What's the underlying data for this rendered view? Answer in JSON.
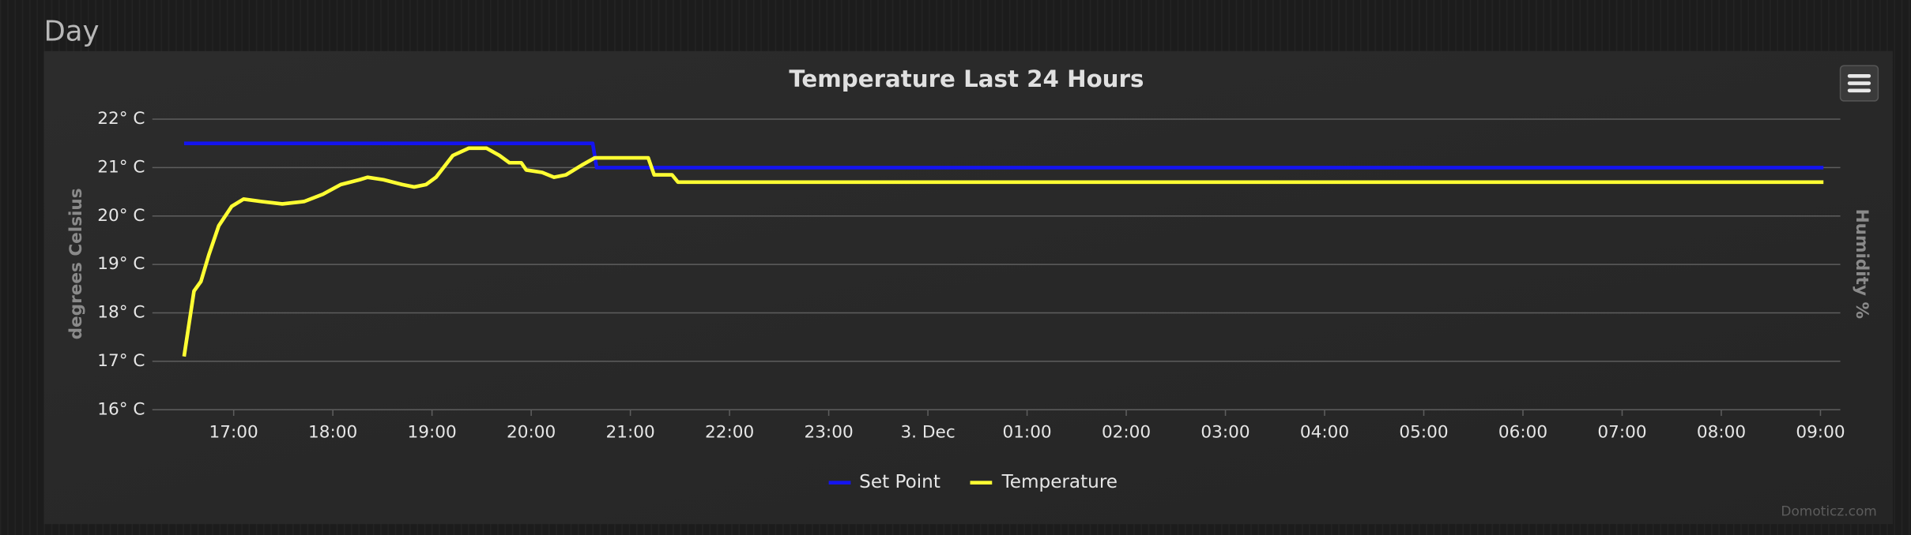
{
  "header": {
    "title": "Day"
  },
  "chart_data": {
    "type": "line",
    "title": "Temperature Last 24 Hours",
    "y_label": "degrees Celsius",
    "y2_label": "Humidity %",
    "credit": "Domoticz.com",
    "legend": "bottom",
    "grid": true,
    "xlim": [
      16.18,
      33.2
    ],
    "xticks": [
      {
        "value": 17,
        "label": "17:00"
      },
      {
        "value": 18,
        "label": "18:00"
      },
      {
        "value": 19,
        "label": "19:00"
      },
      {
        "value": 20,
        "label": "20:00"
      },
      {
        "value": 21,
        "label": "21:00"
      },
      {
        "value": 22,
        "label": "22:00"
      },
      {
        "value": 23,
        "label": "23:00"
      },
      {
        "value": 24,
        "label": "3. Dec"
      },
      {
        "value": 25,
        "label": "01:00"
      },
      {
        "value": 26,
        "label": "02:00"
      },
      {
        "value": 27,
        "label": "03:00"
      },
      {
        "value": 28,
        "label": "04:00"
      },
      {
        "value": 29,
        "label": "05:00"
      },
      {
        "value": 30,
        "label": "06:00"
      },
      {
        "value": 31,
        "label": "07:00"
      },
      {
        "value": 32,
        "label": "08:00"
      },
      {
        "value": 33,
        "label": "09:00"
      }
    ],
    "ylim": [
      16,
      22
    ],
    "yticks": [
      {
        "value": 16,
        "label": "16° C"
      },
      {
        "value": 17,
        "label": "17° C"
      },
      {
        "value": 18,
        "label": "18° C"
      },
      {
        "value": 19,
        "label": "19° C"
      },
      {
        "value": 20,
        "label": "20° C"
      },
      {
        "value": 21,
        "label": "21° C"
      },
      {
        "value": 22,
        "label": "22° C"
      }
    ],
    "series": [
      {
        "name": "Set Point",
        "color": "#1414f0",
        "x": [
          16.5,
          20.62,
          20.66,
          33.03
        ],
        "values": [
          21.5,
          21.5,
          21.0,
          21.0
        ]
      },
      {
        "name": "Temperature",
        "color": "#ffff33",
        "x": [
          16.5,
          16.6,
          16.67,
          16.75,
          16.85,
          16.98,
          17.1,
          17.28,
          17.49,
          17.71,
          17.9,
          18.08,
          18.27,
          18.35,
          18.51,
          18.7,
          18.82,
          18.94,
          19.04,
          19.21,
          19.37,
          19.55,
          19.68,
          19.78,
          19.9,
          19.95,
          20.11,
          20.23,
          20.35,
          20.51,
          20.64,
          21.18,
          21.24,
          21.42,
          21.48,
          33.03
        ],
        "values": [
          17.1,
          18.45,
          18.65,
          19.2,
          19.8,
          20.2,
          20.35,
          20.3,
          20.25,
          20.3,
          20.45,
          20.65,
          20.75,
          20.8,
          20.75,
          20.65,
          20.6,
          20.65,
          20.8,
          21.25,
          21.4,
          21.4,
          21.25,
          21.1,
          21.1,
          20.95,
          20.9,
          20.8,
          20.85,
          21.05,
          21.2,
          21.2,
          20.85,
          20.85,
          20.7,
          20.7
        ]
      }
    ]
  }
}
